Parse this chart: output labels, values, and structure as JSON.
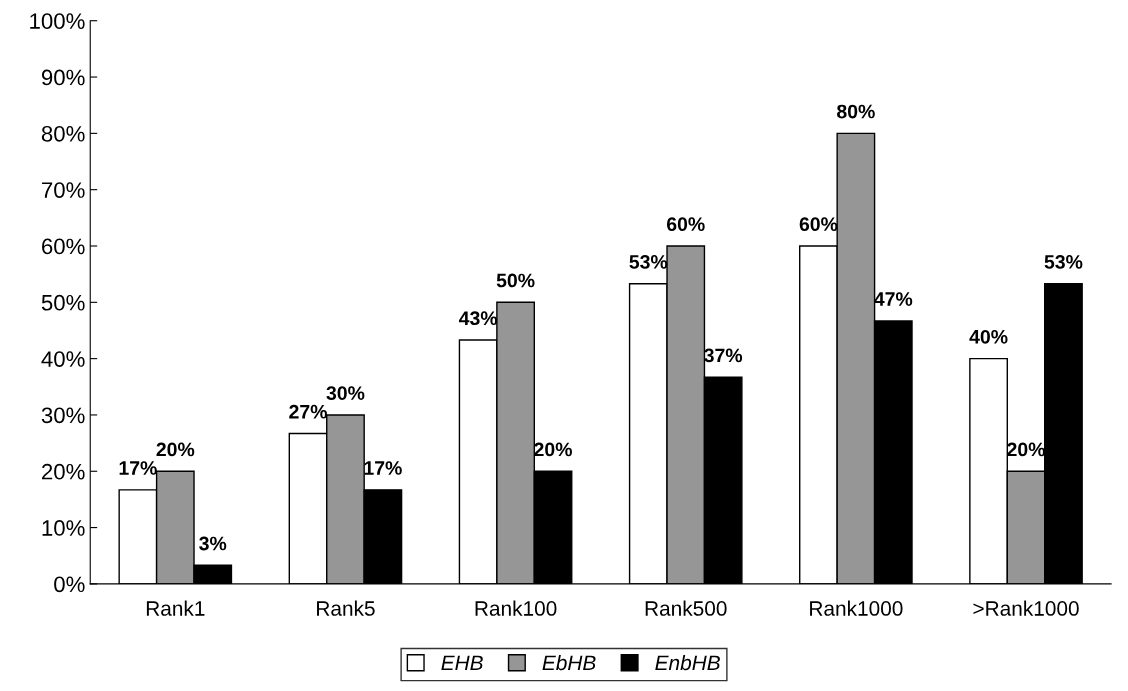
{
  "chart_data": {
    "type": "bar",
    "categories": [
      "Rank1",
      "Rank5",
      "Rank100",
      "Rank500",
      "Rank1000",
      ">Rank1000"
    ],
    "series": [
      {
        "name": "EHB",
        "color": "#ffffff",
        "values": [
          16.7,
          26.7,
          43.3,
          53.3,
          60,
          40
        ],
        "value_labels": [
          "17%",
          "27%",
          "43%",
          "53%",
          "60%",
          "40%"
        ]
      },
      {
        "name": "EbHB",
        "color": "#969696",
        "values": [
          20,
          30,
          50,
          60,
          80,
          20
        ],
        "value_labels": [
          "20%",
          "30%",
          "50%",
          "60%",
          "80%",
          "20%"
        ]
      },
      {
        "name": "EnbHB",
        "color": "#000000",
        "values": [
          3.3,
          16.7,
          20,
          36.7,
          46.7,
          53.3
        ],
        "value_labels": [
          "3%",
          "17%",
          "20%",
          "37%",
          "47%",
          "53%"
        ]
      }
    ],
    "ylim": [
      0,
      100
    ],
    "yticks": [
      {
        "value": 0,
        "label": "0%"
      },
      {
        "value": 10,
        "label": "10%"
      },
      {
        "value": 20,
        "label": "20%"
      },
      {
        "value": 30,
        "label": "30%"
      },
      {
        "value": 40,
        "label": "40%"
      },
      {
        "value": 50,
        "label": "50%"
      },
      {
        "value": 60,
        "label": "60%"
      },
      {
        "value": 70,
        "label": "70%"
      },
      {
        "value": 80,
        "label": "80%"
      },
      {
        "value": 90,
        "label": "90%"
      },
      {
        "value": 100,
        "label": "100%"
      }
    ],
    "grid": false,
    "legend": "bottom"
  }
}
